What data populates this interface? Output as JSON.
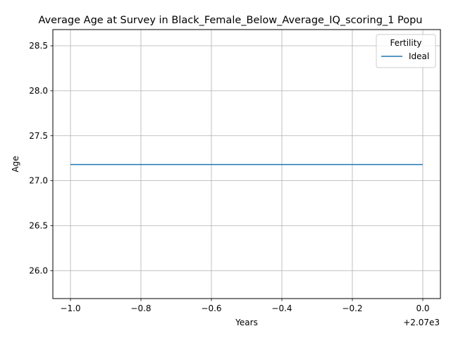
{
  "chart_data": {
    "type": "line",
    "title": "Average Age at Survey in Black_Female_Below_Average_IQ_scoring_1 Popu",
    "xlabel": "Years",
    "ylabel": "Age",
    "x_offset_label": "+2.07e3",
    "xlim": [
      2068.95,
      2070.05
    ],
    "ylim": [
      25.69,
      28.68
    ],
    "x_ticks": [
      2069.0,
      2069.2,
      2069.4,
      2069.6,
      2069.8,
      2070.0
    ],
    "x_tick_labels": [
      "−1.0",
      "−0.8",
      "−0.6",
      "−0.4",
      "−0.2",
      "0.0"
    ],
    "y_ticks": [
      26.0,
      26.5,
      27.0,
      27.5,
      28.0,
      28.5
    ],
    "y_tick_labels": [
      "26.0",
      "26.5",
      "27.0",
      "27.5",
      "28.0",
      "28.5"
    ],
    "grid": true,
    "legend": {
      "title": "Fertility",
      "position": "top-right"
    },
    "series": [
      {
        "name": "Ideal",
        "color": "#1f77b4",
        "x": [
          2069,
          2070
        ],
        "y": [
          27.18,
          27.18
        ]
      }
    ]
  }
}
